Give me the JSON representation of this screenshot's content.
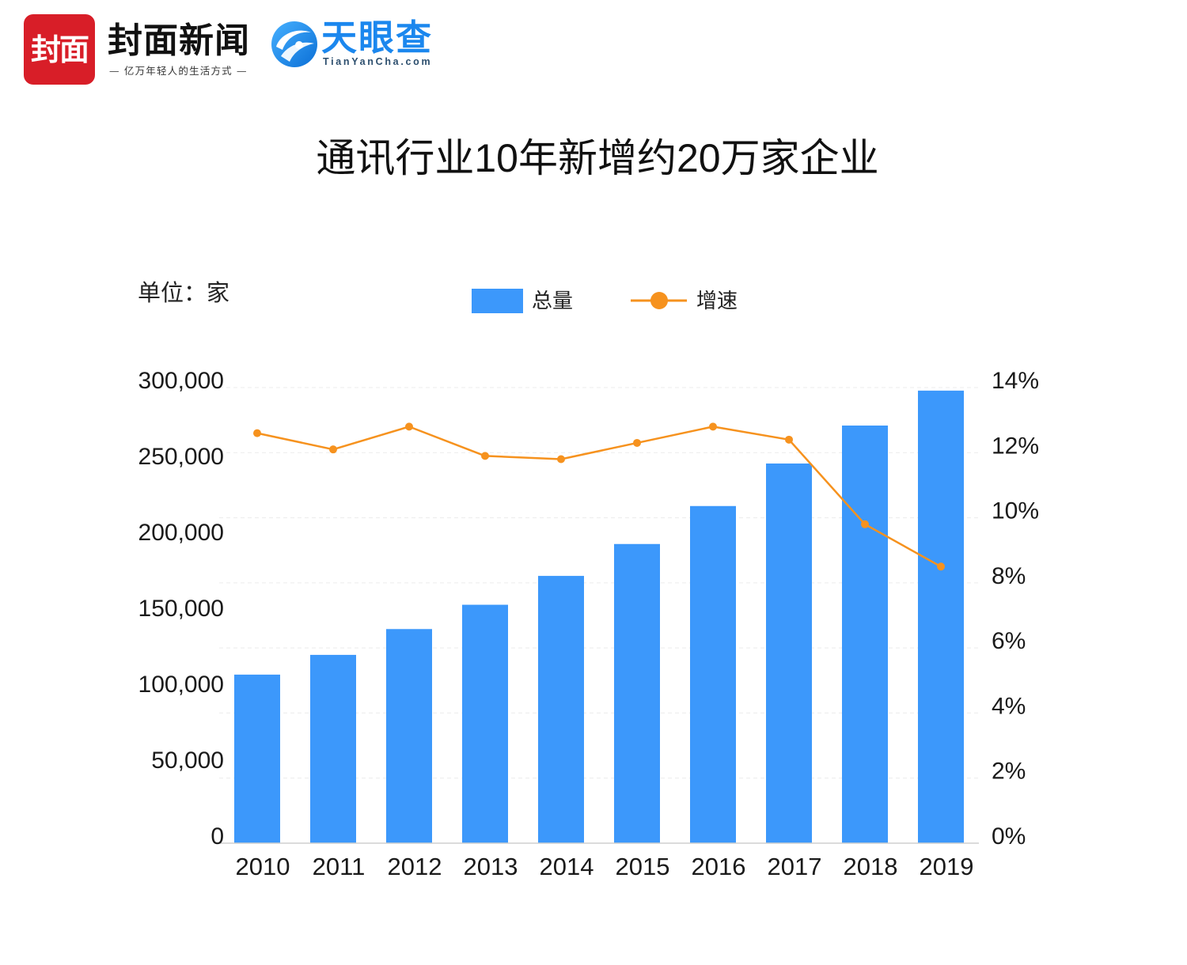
{
  "header": {
    "fengmian_logo_text": "封面",
    "fengmian_name": "封面新闻",
    "fengmian_slogan": "— 亿万年轻人的生活方式 —",
    "fengmian_color": "#d81e28",
    "tianyancha_icon": "tianyancha-eye-icon",
    "tianyancha_name": "天眼查",
    "tianyancha_domain": "TianYanCha.com",
    "tianyancha_color": "#1b87ee"
  },
  "chart_data": {
    "type": "bar",
    "title": "通讯行业10年新增约20万家企业",
    "unit_label": "单位：家",
    "categories": [
      "2010",
      "2011",
      "2012",
      "2013",
      "2014",
      "2015",
      "2016",
      "2017",
      "2018",
      "2019"
    ],
    "series": [
      {
        "name": "总量",
        "type": "bar",
        "y_axis": "left",
        "color": "#3c98fb",
        "values": [
          111000,
          124000,
          141000,
          157000,
          176000,
          197000,
          222000,
          250000,
          275000,
          298000
        ]
      },
      {
        "name": "增速",
        "type": "line",
        "y_axis": "right",
        "color": "#f6921e",
        "values": [
          12.6,
          12.1,
          12.8,
          11.9,
          11.8,
          12.3,
          12.8,
          12.4,
          9.8,
          8.5
        ]
      }
    ],
    "y_left": {
      "ylim": [
        0,
        300000
      ],
      "ticks": [
        0,
        50000,
        100000,
        150000,
        200000,
        250000,
        300000
      ],
      "tick_labels": [
        "0",
        "50,000",
        "100,000",
        "150,000",
        "200,000",
        "250,000",
        "300,000"
      ]
    },
    "y_right": {
      "ylim": [
        0,
        14
      ],
      "ticks": [
        0,
        2,
        4,
        6,
        8,
        10,
        12,
        14
      ],
      "tick_labels": [
        "0%",
        "2%",
        "4%",
        "6%",
        "8%",
        "10%",
        "12%",
        "14%"
      ]
    },
    "grid": true,
    "legend": "top-center"
  }
}
